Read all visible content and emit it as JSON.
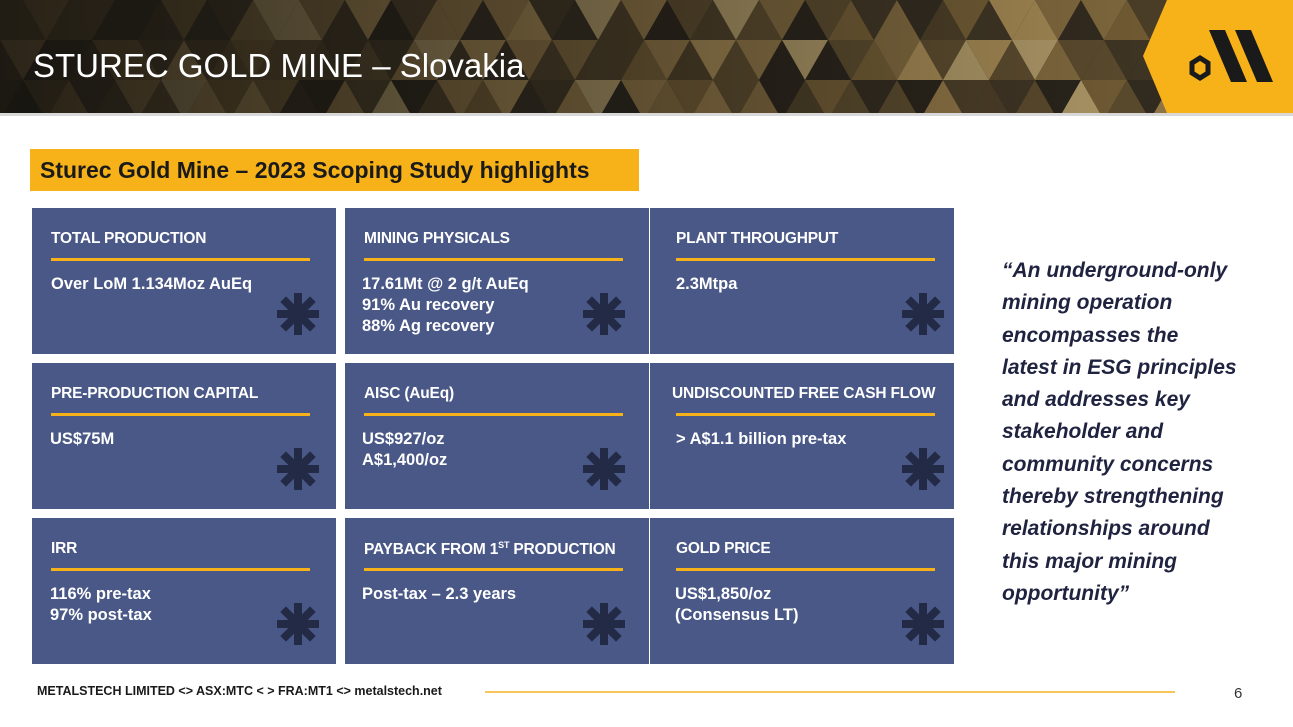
{
  "header": {
    "title": "STUREC GOLD MINE – Slovakia"
  },
  "section": {
    "heading": "Sturec Gold Mine – 2023 Scoping Study highlights"
  },
  "cards": [
    {
      "title": "TOTAL PRODUCTION",
      "lines": [
        "Over LoM 1.134Moz AuEq"
      ]
    },
    {
      "title": "MINING PHYSICALS",
      "lines": [
        "17.61Mt @ 2 g/t AuEq",
        "91% Au recovery",
        "88% Ag recovery"
      ]
    },
    {
      "title": "PLANT THROUGHPUT",
      "lines": [
        "2.3Mtpa"
      ]
    },
    {
      "title": "PRE-PRODUCTION CAPITAL",
      "lines": [
        "US$75M"
      ]
    },
    {
      "title": "AISC (AuEq)",
      "lines": [
        "US$927/oz",
        "A$1,400/oz"
      ]
    },
    {
      "title": "UNDISCOUNTED FREE CASH FLOW",
      "lines": [
        "> A$1.1 billion pre-tax"
      ]
    },
    {
      "title": "IRR",
      "lines": [
        "116% pre-tax",
        "97% post-tax"
      ]
    },
    {
      "title_pre": "PAYBACK FROM 1",
      "title_sup": "ST",
      "title_post": " PRODUCTION",
      "lines": [
        "Post-tax – 2.3 years"
      ]
    },
    {
      "title": "GOLD PRICE",
      "lines": [
        "US$1,850/oz",
        "(Consensus LT)"
      ]
    }
  ],
  "quote": {
    "lines": [
      "“An underground-only",
      "mining operation",
      "encompasses the",
      "latest in ESG principles",
      "and addresses key",
      "stakeholder and",
      "community concerns",
      "thereby strengthening",
      "relationships around",
      "this major mining",
      "opportunity”"
    ]
  },
  "footer": {
    "text": "METALSTECH LIMITED <> ASX:MTC  < > FRA:MT1 <> metalstech.net",
    "page_number": "6"
  },
  "colors": {
    "accent_gold": "#f7b21a",
    "card_blue": "#4a5887",
    "asterisk": "#232a45",
    "quote_text": "#1f2340"
  },
  "icons": {
    "logo": "metalstech-logo-icon",
    "card_mark": "asterisk-icon"
  }
}
